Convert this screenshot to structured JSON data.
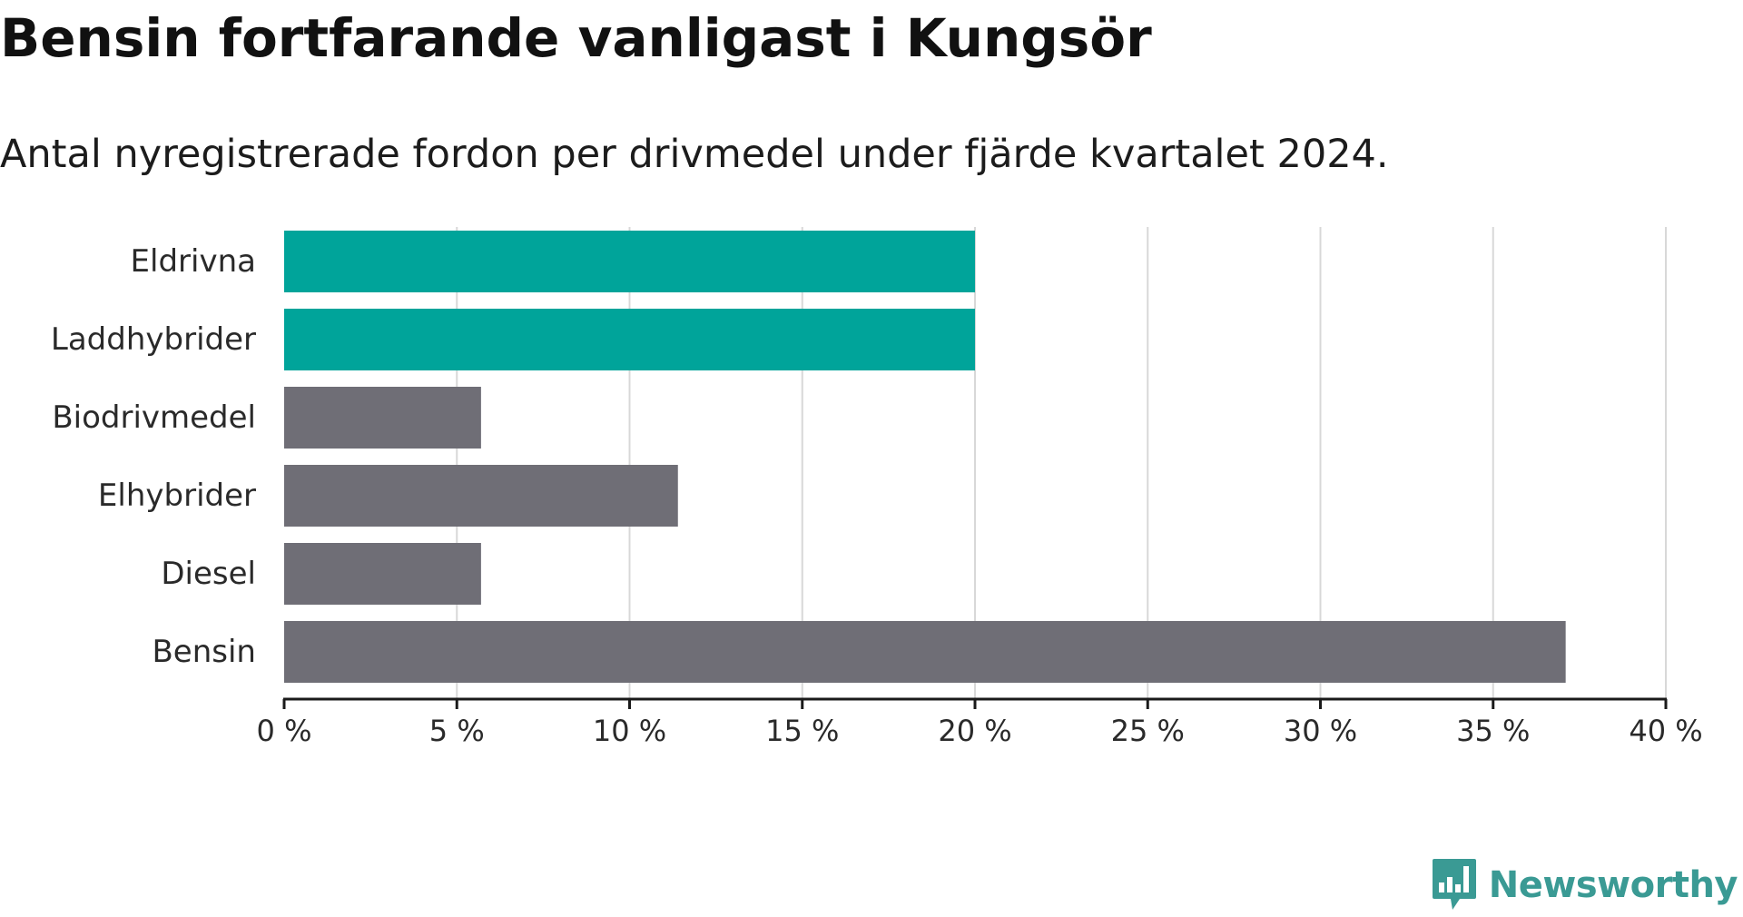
{
  "title": "Bensin fortfarande vanligast i Kungsör",
  "subtitle": "Antal nyregistrerade fordon per drivmedel under fjärde kvartalet 2024.",
  "brand": {
    "name": "Newsworthy",
    "color": "#3a9a94",
    "icon": "bar-chart-speech-bubble-icon"
  },
  "colors": {
    "highlight": "#00a49a",
    "default": "#6f6e76",
    "grid": "#d8d8d8",
    "axis": "#1a1a1a"
  },
  "chart_data": {
    "type": "bar",
    "orientation": "horizontal",
    "title": "Bensin fortfarande vanligast i Kungsör",
    "subtitle": "Antal nyregistrerade fordon per drivmedel under fjärde kvartalet 2024.",
    "categories": [
      "Eldrivna",
      "Laddhybrider",
      "Biodrivmedel",
      "Elhybrider",
      "Diesel",
      "Bensin"
    ],
    "values": [
      20.0,
      20.0,
      5.7,
      11.4,
      5.7,
      37.1
    ],
    "unit": "%",
    "highlighted": [
      true,
      true,
      false,
      false,
      false,
      false
    ],
    "xlim": [
      0,
      40
    ],
    "xticks": [
      0,
      5,
      10,
      15,
      20,
      25,
      30,
      35,
      40
    ],
    "xtick_labels": [
      "0 %",
      "5 %",
      "10 %",
      "15 %",
      "20 %",
      "25 %",
      "30 %",
      "35 %",
      "40 %"
    ],
    "grid": true,
    "legend": "none"
  }
}
